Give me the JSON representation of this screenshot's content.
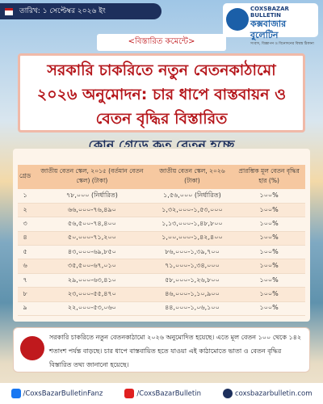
{
  "header": {
    "date": "তারিখ: ১ সেপ্টেম্বর ২০২৬ ইং",
    "logo_en": "COXSBAZAR BULLETIN",
    "logo_bn": "কক্সবাজার বুলেটিন",
    "logo_tagline": "সংবাদ, বিজ্ঞাপন ও বিনোদনের বিশ্বস্ত ঠিকানা"
  },
  "tag": "<বিস্তারিত কমেন্টে>",
  "title": "সরকারি চাকরিতে নতুন বেতনকাঠামো ২০২৬ অনুমোদন: চার ধাপে বাস্তবায়ন ও বেতন বৃদ্ধির বিস্তারিত",
  "subtitle": "কোন গ্রেডে কত বেতন হচ্ছে",
  "table": {
    "headers": [
      "গ্রেড",
      "জাতীয় বেতন স্কেল, ২০১৫ (বর্তমান বেতন স্কেল) (টাকা)",
      "জাতীয় বেতন স্কেল, ২০২৬ (টাকা)",
      "প্রারম্ভিক মূল বেতন বৃদ্ধির হার (%)"
    ],
    "rows": [
      [
        "১",
        "৭৮,০০০ (নির্ধারিত)",
        "১,৫৬,০০০ (নির্ধারিত)",
        "১০০%"
      ],
      [
        "২",
        "৬৬,০০০-৭৬,৪৯০",
        "১,৩২,০০০-১,৫৩,০০০",
        "১০০%"
      ],
      [
        "৩",
        "৫৬,৫০০-৭৪,৪০০",
        "১,১৩,০০০-১,৪৮,৮০০",
        "১০০%"
      ],
      [
        "৪",
        "৫০,০০০-৭১,২০০",
        "১,০০,০০০-১,৪২,৪০০",
        "১০০%"
      ],
      [
        "৫",
        "৪৩,০০০-৬৯,৮৫০",
        "৮৬,০০০-১,৩৯,৭০০",
        "১০০%"
      ],
      [
        "৬",
        "৩৫,৫০০-৬৭,০১০",
        "৭১,০০০-১,৩৪,০০০",
        "১০০%"
      ],
      [
        "৭",
        "২৯,০০০-৬৩,৪১০",
        "৫৮,০০০-১,২৬,৮০০",
        "১০০%"
      ],
      [
        "৮",
        "২৩,০০০-৫৫,৪৭০",
        "৪৬,০০০-১,১০,৯০০",
        "১০০%"
      ],
      [
        "৯",
        "২২,০০০-৫৩,০৬০",
        "৪৪,০০০-১,০৬,১০০",
        "১০০%"
      ]
    ]
  },
  "note": "সরকারি চাকরিতে নতুন বেতনকাঠামো ২০২৬ অনুমোদিত হয়েছে। এতে মূল বেতন ১০০ থেকে ১৪২ শতাংশ পর্যন্ত বাড়ছে। চার ধাপে বাস্তবায়িত হতে যাওয়া এই কাঠামোতে ভাতা ও বেতন বৃদ্ধির বিস্তারিত তথ্য জানানো হয়েছে।",
  "footer": {
    "facebook": "/CoxsBazarBulletinFanz",
    "youtube": "/CoxsBazarBulletin",
    "website": "coxsbazarbulletin.com"
  }
}
